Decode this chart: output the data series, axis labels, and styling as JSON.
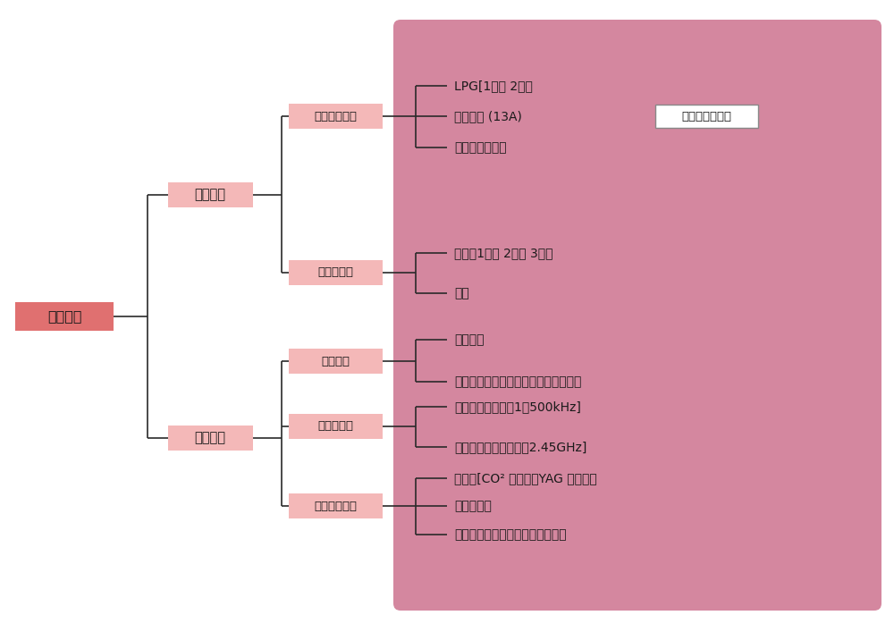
{
  "bg_color": "#ffffff",
  "pink_bg": "#d4879f",
  "box_color_dark": "#e07070",
  "box_color_light": "#f4b8b8",
  "line_color": "#2a2a2a",
  "text_color": "#1a1a1a",
  "label_box_text": "【熱源の種類】",
  "root_label": "加熱装置",
  "level1_labels": [
    "燃焼加熱",
    "電気加熱"
  ],
  "level2_labels": [
    "ガス燃焼加熱",
    "油燃焼加熱",
    "抗抗加熱",
    "電磁波加熱",
    "その他の加熱"
  ],
  "level3_gas": [
    "LPG[1種、 2種］",
    "都市ガス (13A)",
    "アセチレンガス"
  ],
  "level3_oil": [
    "重油［1種、 2種、 3種］",
    "灯油"
  ],
  "level3_resist": [
    "直接通電",
    "発熱体［金属発熱体、非金属発熱体］"
  ],
  "level3_em": [
    "高周波［周波数：1～500kHz]",
    "マイクロ波［周波数：2.45GHz]"
  ],
  "level3_other": [
    "レーザ[CO² レーザ、YAG レーザ］",
    "電子ビーム",
    "放電［アーク放電、グロー放電］"
  ]
}
